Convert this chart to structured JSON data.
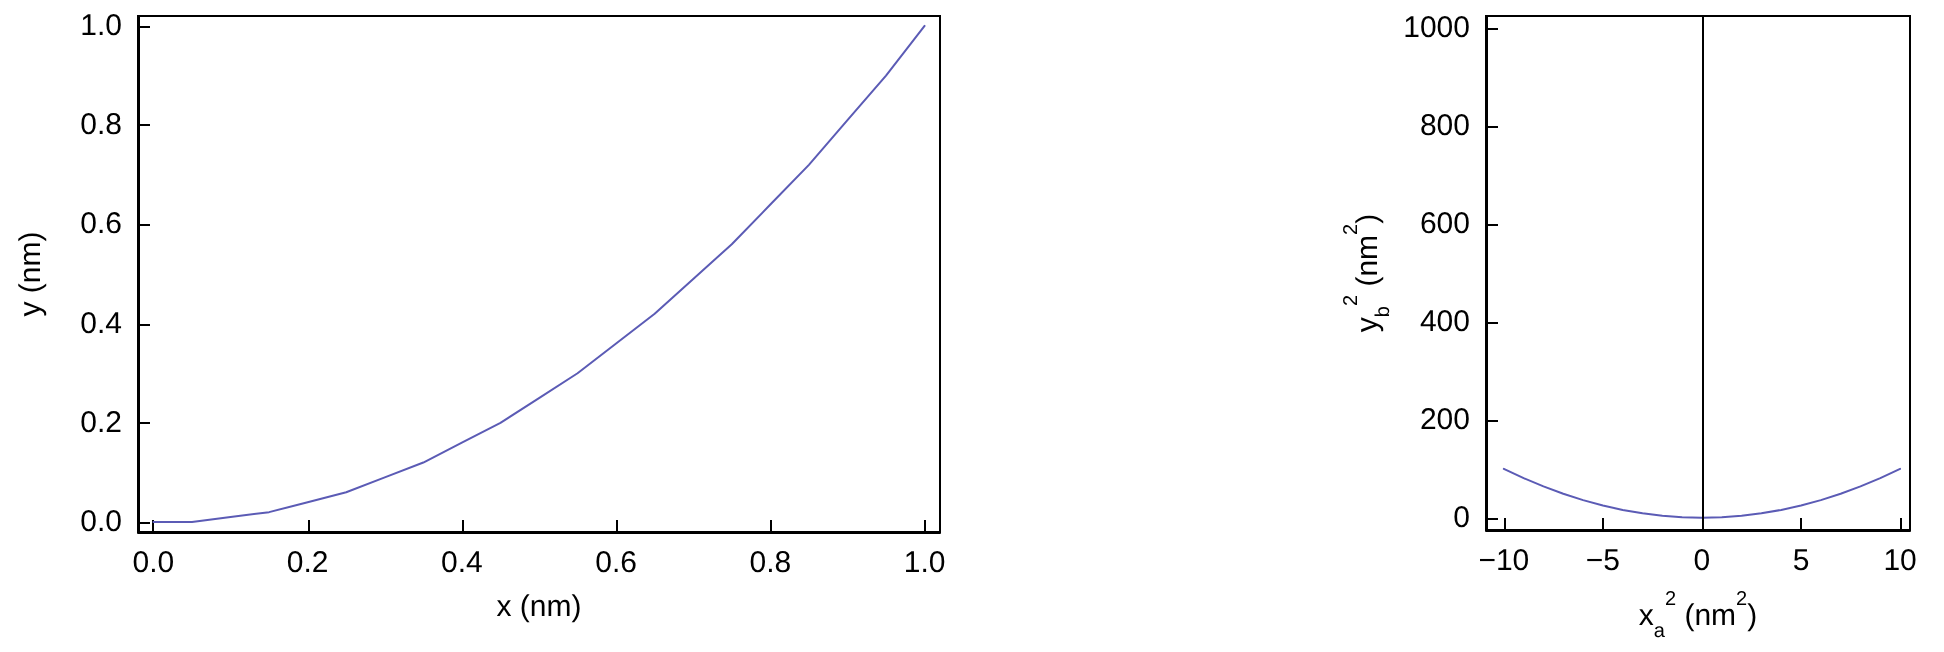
{
  "chart_data": [
    {
      "type": "line",
      "xlabel": "x (nm)",
      "ylabel": "y (nm)",
      "x": [
        0,
        0.05,
        0.1,
        0.15,
        0.2,
        0.25,
        0.3,
        0.35,
        0.4,
        0.45,
        0.5,
        0.55,
        0.6,
        0.65,
        0.7,
        0.75,
        0.8,
        0.85,
        0.9,
        0.95,
        1
      ],
      "series": [
        {
          "color": "#5b5bb5",
          "values": [
            0,
            0,
            0.01,
            0.02,
            0.04,
            0.06,
            0.09,
            0.12,
            0.16,
            0.2,
            0.25,
            0.3,
            0.36,
            0.42,
            0.49,
            0.56,
            0.64,
            0.72,
            0.81,
            0.9,
            1
          ]
        }
      ],
      "xlim": [
        -0.02,
        1.02
      ],
      "ylim": [
        -0.02,
        1.02
      ],
      "xticks": [
        {
          "value": 0,
          "label": "0.0"
        },
        0.2,
        0.4,
        0.6,
        0.8,
        {
          "value": 1,
          "label": "1.0"
        }
      ],
      "yticks": [
        {
          "value": 0,
          "label": "0.0"
        },
        0.2,
        0.4,
        0.6,
        0.8,
        {
          "value": 1,
          "label": "1.0"
        }
      ],
      "grid": false,
      "marker": "none",
      "line_style": "solid"
    },
    {
      "type": "line",
      "xlabel": "x$_{a}$$^{2}$ (nm$^{2}$)",
      "ylabel": "y$_{b}$$^{2}$ (nm$^{2}$)",
      "x": [
        -10,
        -9,
        -8,
        -7,
        -6,
        -5,
        -4,
        -3,
        -2,
        -1,
        0,
        1,
        2,
        3,
        4,
        5,
        6,
        7,
        8,
        9,
        10
      ],
      "series": [
        {
          "color": "#5b5bb5",
          "values": [
            100,
            81,
            64,
            49,
            36,
            25,
            16,
            9,
            4,
            1,
            0,
            1,
            4,
            9,
            16,
            25,
            36,
            49,
            64,
            81,
            100
          ]
        }
      ],
      "xlim": [
        -10.9,
        10.5
      ],
      "ylim": [
        -25,
        1025
      ],
      "xticks": [
        {
          "value": -10,
          "label": "−10"
        },
        {
          "value": -5,
          "label": "−5"
        },
        0,
        5,
        10
      ],
      "yticks": [
        0,
        200,
        400,
        600,
        800,
        1000
      ],
      "ref_lines": [
        {
          "axis": "x",
          "value": 0,
          "color": "#000000",
          "line_style": "solid"
        }
      ],
      "grid": false,
      "marker": "none",
      "line_style": "solid"
    }
  ]
}
